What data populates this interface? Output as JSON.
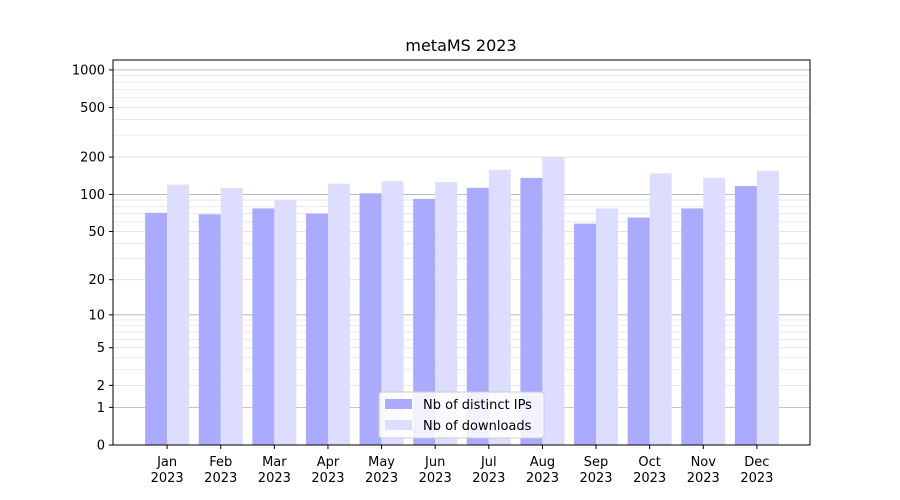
{
  "chart_data": {
    "type": "bar",
    "title": "metaMS 2023",
    "xlabel": "",
    "ylabel": "",
    "yscale": "log(1+y)",
    "ylim": [
      0,
      1200
    ],
    "yticks": [
      0,
      1,
      2,
      5,
      10,
      20,
      50,
      100,
      200,
      500,
      1000
    ],
    "categories": [
      [
        "Jan",
        "2023"
      ],
      [
        "Feb",
        "2023"
      ],
      [
        "Mar",
        "2023"
      ],
      [
        "Apr",
        "2023"
      ],
      [
        "May",
        "2023"
      ],
      [
        "Jun",
        "2023"
      ],
      [
        "Jul",
        "2023"
      ],
      [
        "Aug",
        "2023"
      ],
      [
        "Sep",
        "2023"
      ],
      [
        "Oct",
        "2023"
      ],
      [
        "Nov",
        "2023"
      ],
      [
        "Dec",
        "2023"
      ]
    ],
    "series": [
      {
        "name": "Nb of distinct IPs",
        "color": "#aaaaff",
        "values": [
          71,
          69,
          77,
          70,
          102,
          92,
          113,
          136,
          58,
          65,
          77,
          117
        ]
      },
      {
        "name": "Nb of downloads",
        "color": "#ddddff",
        "values": [
          120,
          113,
          90,
          122,
          128,
          126,
          158,
          200,
          77,
          148,
          136,
          155
        ]
      }
    ],
    "grid": true,
    "legend_position": "bottom-center"
  }
}
